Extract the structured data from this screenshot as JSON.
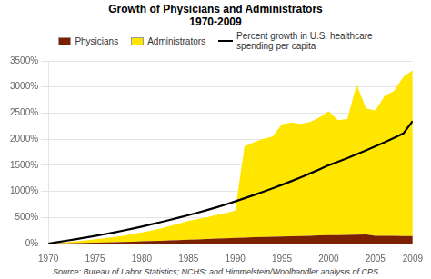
{
  "chart_data": {
    "type": "area",
    "title": "Growth of Physicians and Administrators",
    "subtitle": "1970-2009",
    "annotation": "Source: Bureau of Labor Statistics; NCHS; and Himmelstein/Woolhandler analysis of CPS",
    "x": [
      1970,
      1971,
      1972,
      1973,
      1974,
      1975,
      1976,
      1977,
      1978,
      1979,
      1980,
      1981,
      1982,
      1983,
      1984,
      1985,
      1986,
      1987,
      1988,
      1989,
      1990,
      1991,
      1992,
      1993,
      1994,
      1995,
      1996,
      1997,
      1998,
      1999,
      2000,
      2001,
      2002,
      2003,
      2004,
      2005,
      2006,
      2007,
      2008,
      2009
    ],
    "series": [
      {
        "name": "Physicians",
        "type": "area",
        "color": "#7B2000",
        "values": [
          0,
          3,
          6,
          9,
          12,
          16,
          20,
          25,
          30,
          36,
          42,
          48,
          54,
          60,
          67,
          74,
          80,
          87,
          94,
          102,
          110,
          115,
          120,
          125,
          130,
          135,
          140,
          145,
          150,
          155,
          160,
          163,
          166,
          169,
          172,
          150,
          148,
          146,
          144,
          142
        ]
      },
      {
        "name": "Administrators",
        "type": "area",
        "color": "#FFE600",
        "values": [
          0,
          10,
          22,
          35,
          50,
          65,
          82,
          100,
          120,
          145,
          170,
          200,
          235,
          275,
          315,
          360,
          390,
          420,
          455,
          480,
          520,
          1750,
          1820,
          1880,
          1920,
          2150,
          2180,
          2150,
          2180,
          2260,
          2380,
          2200,
          2220,
          2880,
          2420,
          2400,
          2680,
          2780,
          3050,
          3180
        ]
      },
      {
        "name": "Percent growth in U.S. healthcare\nspending per capita",
        "type": "line",
        "color": "#000000",
        "values": [
          0,
          28,
          56,
          85,
          115,
          145,
          178,
          212,
          248,
          285,
          325,
          368,
          410,
          453,
          498,
          545,
          592,
          642,
          695,
          750,
          808,
          868,
          930,
          993,
          1058,
          1125,
          1195,
          1268,
          1343,
          1420,
          1500,
          1568,
          1638,
          1710,
          1785,
          1862,
          1942,
          2024,
          2110,
          2350
        ]
      }
    ],
    "stacked": true,
    "xlim": [
      1970,
      2009
    ],
    "xticks": [
      1970,
      1975,
      1980,
      1985,
      1990,
      1995,
      2000,
      2005,
      2009
    ],
    "ylim": [
      0,
      3500
    ],
    "yticks": [
      {
        "value": 0,
        "label": "0%"
      },
      {
        "value": 500,
        "label": "500%"
      },
      {
        "value": 1000,
        "label": "1000%"
      },
      {
        "value": 1500,
        "label": "1500%"
      },
      {
        "value": 2000,
        "label": "2000%"
      },
      {
        "value": 2500,
        "label": "2500%"
      },
      {
        "value": 3000,
        "label": "3000%"
      },
      {
        "value": 3500,
        "label": "3500%"
      }
    ],
    "grid": true
  }
}
